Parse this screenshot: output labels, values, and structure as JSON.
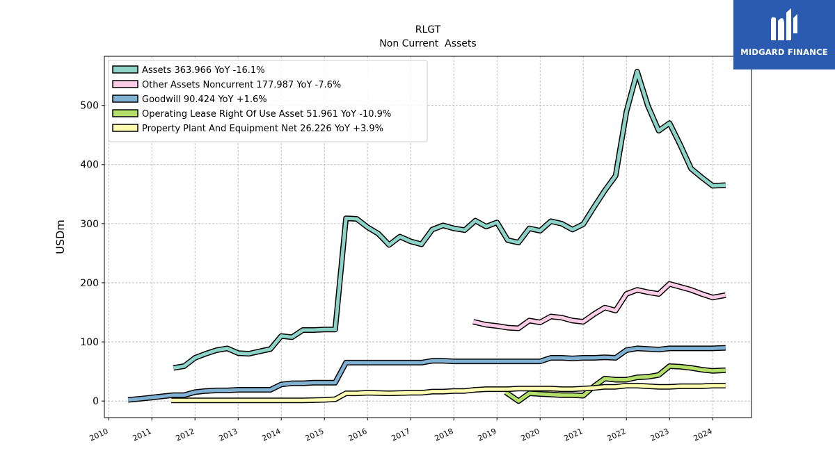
{
  "brand": {
    "name": "MIDGARD FINANCE",
    "logo_icon": "midgard-m-logo-icon",
    "background": "#2a5bb0"
  },
  "chart_data": {
    "type": "line",
    "title": "RLGT",
    "subtitle": "Non Current  Assets",
    "xlabel": "",
    "ylabel": "USDm",
    "xlim": [
      2009.9,
      2024.9
    ],
    "ylim": [
      -28,
      583
    ],
    "x_ticks": [
      "2010",
      "2011",
      "2012",
      "2013",
      "2014",
      "2015",
      "2016",
      "2017",
      "2018",
      "2019",
      "2020",
      "2021",
      "2022",
      "2023",
      "2024"
    ],
    "y_ticks": [
      "0",
      "100",
      "200",
      "300",
      "400",
      "500"
    ],
    "grid": true,
    "legend_position": "top-left",
    "series": [
      {
        "name": "Assets",
        "legend_label": "Assets  363.966 YoY -16.1%",
        "color": "#8dd3c7",
        "points": [
          [
            2011.5,
            56
          ],
          [
            2011.75,
            59
          ],
          [
            2012.0,
            73
          ],
          [
            2012.25,
            80
          ],
          [
            2012.5,
            86
          ],
          [
            2012.75,
            89
          ],
          [
            2013.0,
            81
          ],
          [
            2013.25,
            80
          ],
          [
            2013.5,
            84
          ],
          [
            2013.75,
            88
          ],
          [
            2014.0,
            110
          ],
          [
            2014.25,
            108
          ],
          [
            2014.5,
            120
          ],
          [
            2014.75,
            120
          ],
          [
            2015.0,
            121
          ],
          [
            2015.25,
            121
          ],
          [
            2015.5,
            309
          ],
          [
            2015.75,
            308
          ],
          [
            2016.0,
            294
          ],
          [
            2016.25,
            283
          ],
          [
            2016.5,
            264
          ],
          [
            2016.75,
            278
          ],
          [
            2017.0,
            270
          ],
          [
            2017.25,
            265
          ],
          [
            2017.5,
            290
          ],
          [
            2017.75,
            297
          ],
          [
            2018.0,
            292
          ],
          [
            2018.25,
            289
          ],
          [
            2018.5,
            305
          ],
          [
            2018.75,
            295
          ],
          [
            2019.0,
            302
          ],
          [
            2019.25,
            272
          ],
          [
            2019.5,
            268
          ],
          [
            2019.75,
            292
          ],
          [
            2020.0,
            288
          ],
          [
            2020.25,
            304
          ],
          [
            2020.5,
            300
          ],
          [
            2020.75,
            290
          ],
          [
            2021.0,
            299
          ],
          [
            2021.25,
            328
          ],
          [
            2021.5,
            356
          ],
          [
            2021.75,
            381
          ],
          [
            2022.0,
            489
          ],
          [
            2022.25,
            557
          ],
          [
            2022.5,
            499
          ],
          [
            2022.75,
            457
          ],
          [
            2023.0,
            470
          ],
          [
            2023.25,
            433
          ],
          [
            2023.5,
            393
          ],
          [
            2023.75,
            378
          ],
          [
            2024.0,
            364
          ],
          [
            2024.3,
            365
          ]
        ]
      },
      {
        "name": "Other Assets Noncurrent",
        "legend_label": "Other Assets Noncurrent  177.987 YoY -7.6%",
        "color": "#fccde5",
        "points": [
          [
            2018.45,
            134
          ],
          [
            2018.75,
            129
          ],
          [
            2019.0,
            127
          ],
          [
            2019.25,
            124
          ],
          [
            2019.5,
            123
          ],
          [
            2019.75,
            136
          ],
          [
            2020.0,
            133
          ],
          [
            2020.25,
            143
          ],
          [
            2020.5,
            141
          ],
          [
            2020.75,
            136
          ],
          [
            2021.0,
            134
          ],
          [
            2021.25,
            147
          ],
          [
            2021.5,
            158
          ],
          [
            2021.75,
            153
          ],
          [
            2022.0,
            181
          ],
          [
            2022.25,
            188
          ],
          [
            2022.5,
            184
          ],
          [
            2022.75,
            181
          ],
          [
            2023.0,
            198
          ],
          [
            2023.25,
            193
          ],
          [
            2023.5,
            188
          ],
          [
            2023.75,
            181
          ],
          [
            2024.0,
            175
          ],
          [
            2024.3,
            179
          ]
        ]
      },
      {
        "name": "Goodwill",
        "legend_label": "Goodwill  90.424 YoY +1.6%",
        "color": "#80b1d3",
        "points": [
          [
            2010.45,
            2
          ],
          [
            2010.75,
            4
          ],
          [
            2011.0,
            6
          ],
          [
            2011.25,
            8
          ],
          [
            2011.5,
            10
          ],
          [
            2011.75,
            10
          ],
          [
            2012.0,
            15
          ],
          [
            2012.25,
            17
          ],
          [
            2012.5,
            18
          ],
          [
            2012.75,
            18
          ],
          [
            2013.0,
            19
          ],
          [
            2013.25,
            19
          ],
          [
            2013.5,
            19
          ],
          [
            2013.75,
            19
          ],
          [
            2014.0,
            28
          ],
          [
            2014.25,
            30
          ],
          [
            2014.5,
            30
          ],
          [
            2014.75,
            31
          ],
          [
            2015.0,
            31
          ],
          [
            2015.25,
            31
          ],
          [
            2015.5,
            65
          ],
          [
            2015.75,
            65
          ],
          [
            2016.0,
            65
          ],
          [
            2016.25,
            65
          ],
          [
            2016.5,
            65
          ],
          [
            2016.75,
            65
          ],
          [
            2017.0,
            65
          ],
          [
            2017.25,
            65
          ],
          [
            2017.5,
            68
          ],
          [
            2017.75,
            68
          ],
          [
            2018.0,
            67
          ],
          [
            2018.25,
            67
          ],
          [
            2018.5,
            67
          ],
          [
            2018.75,
            67
          ],
          [
            2019.0,
            67
          ],
          [
            2019.25,
            67
          ],
          [
            2019.5,
            67
          ],
          [
            2019.75,
            67
          ],
          [
            2020.0,
            67
          ],
          [
            2020.25,
            73
          ],
          [
            2020.5,
            73
          ],
          [
            2020.75,
            72
          ],
          [
            2021.0,
            73
          ],
          [
            2021.25,
            73
          ],
          [
            2021.5,
            74
          ],
          [
            2021.75,
            73
          ],
          [
            2022.0,
            86
          ],
          [
            2022.25,
            89
          ],
          [
            2022.5,
            88
          ],
          [
            2022.75,
            87
          ],
          [
            2023.0,
            89
          ],
          [
            2023.25,
            89
          ],
          [
            2023.5,
            89
          ],
          [
            2023.75,
            89
          ],
          [
            2024.0,
            89
          ],
          [
            2024.3,
            90
          ]
        ]
      },
      {
        "name": "Operating Lease Right Of Use Asset",
        "legend_label": "Operating Lease Right Of Use Asset  51.961 YoY -10.9%",
        "color": "#b3de69",
        "points": [
          [
            2019.2,
            15
          ],
          [
            2019.5,
            0
          ],
          [
            2019.75,
            13
          ],
          [
            2020.0,
            12
          ],
          [
            2020.25,
            11
          ],
          [
            2020.5,
            10
          ],
          [
            2020.75,
            10
          ],
          [
            2021.0,
            9
          ],
          [
            2021.25,
            25
          ],
          [
            2021.5,
            38
          ],
          [
            2021.75,
            36
          ],
          [
            2022.0,
            36
          ],
          [
            2022.25,
            40
          ],
          [
            2022.5,
            41
          ],
          [
            2022.75,
            44
          ],
          [
            2023.0,
            59
          ],
          [
            2023.25,
            58
          ],
          [
            2023.5,
            56
          ],
          [
            2023.75,
            53
          ],
          [
            2024.0,
            51
          ],
          [
            2024.3,
            52
          ]
        ]
      },
      {
        "name": "Property Plant And Equipment Net",
        "legend_label": "Property Plant And Equipment Net  26.226 YoY +3.9%",
        "color": "#ffffb3",
        "points": [
          [
            2011.45,
            1
          ],
          [
            2012.0,
            1
          ],
          [
            2012.5,
            1
          ],
          [
            2013.0,
            1
          ],
          [
            2013.5,
            1
          ],
          [
            2014.0,
            1
          ],
          [
            2014.5,
            1
          ],
          [
            2015.0,
            2
          ],
          [
            2015.25,
            3
          ],
          [
            2015.5,
            13
          ],
          [
            2015.75,
            13
          ],
          [
            2016.0,
            14
          ],
          [
            2016.5,
            13
          ],
          [
            2017.0,
            14
          ],
          [
            2017.25,
            14
          ],
          [
            2017.5,
            16
          ],
          [
            2017.75,
            16
          ],
          [
            2018.0,
            17
          ],
          [
            2018.25,
            17
          ],
          [
            2018.5,
            19
          ],
          [
            2018.75,
            20
          ],
          [
            2019.0,
            20
          ],
          [
            2019.25,
            20
          ],
          [
            2019.5,
            21
          ],
          [
            2019.75,
            21
          ],
          [
            2020.0,
            21
          ],
          [
            2020.25,
            21
          ],
          [
            2020.5,
            20
          ],
          [
            2020.75,
            20
          ],
          [
            2021.0,
            21
          ],
          [
            2021.25,
            22
          ],
          [
            2021.5,
            24
          ],
          [
            2021.75,
            24
          ],
          [
            2022.0,
            26
          ],
          [
            2022.25,
            26
          ],
          [
            2022.5,
            25
          ],
          [
            2022.75,
            24
          ],
          [
            2023.0,
            24
          ],
          [
            2023.25,
            25
          ],
          [
            2023.5,
            25
          ],
          [
            2023.75,
            25
          ],
          [
            2024.0,
            26
          ],
          [
            2024.3,
            26
          ]
        ]
      }
    ]
  }
}
